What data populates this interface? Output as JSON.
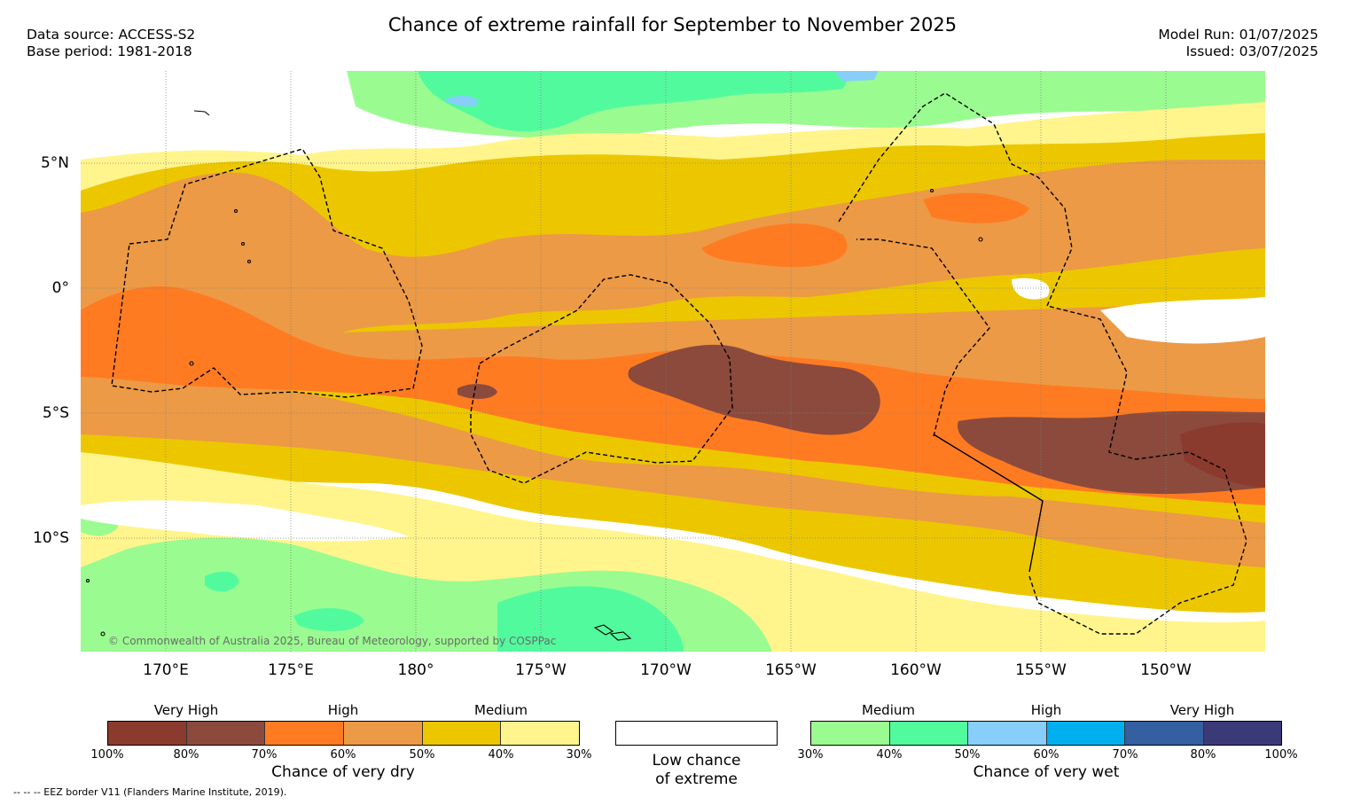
{
  "header": {
    "title": "Chance of extreme rainfall for September to November 2025",
    "data_source": "Data source: ACCESS-S2",
    "base_period": "Base period: 1981-2018",
    "model_run": "Model Run: 01/07/2025",
    "issued": "Issued: 03/07/2025"
  },
  "map": {
    "lat_labels": [
      "5°N",
      "0°",
      "5°S",
      "10°S"
    ],
    "lon_labels": [
      "170°E",
      "175°E",
      "180°",
      "175°W",
      "170°W",
      "165°W",
      "160°W",
      "155°W",
      "150°W"
    ],
    "copyright": "© Commonwealth of Australia 2025, Bureau of Meteorology, supported by COSPPac"
  },
  "legend": {
    "dry": {
      "categories": [
        "Very High",
        "High",
        "Medium"
      ],
      "ticks": [
        "100%",
        "80%",
        "70%",
        "60%",
        "50%",
        "40%",
        "30%"
      ],
      "colors": [
        "#8b3a2e",
        "#8b4a3c",
        "#ff7b22",
        "#ec9a45",
        "#ecc700",
        "#fff58c"
      ],
      "caption": "Chance of very dry"
    },
    "neutral": {
      "caption_line1": "Low chance",
      "caption_line2": "of extreme",
      "color": "#ffffff"
    },
    "wet": {
      "categories": [
        "Medium",
        "High",
        "Very High"
      ],
      "ticks": [
        "30%",
        "40%",
        "50%",
        "60%",
        "70%",
        "80%",
        "100%"
      ],
      "colors": [
        "#9afc90",
        "#52fa9e",
        "#87cefb",
        "#00b0ee",
        "#345fa0",
        "#3b3a78"
      ],
      "caption": "Chance of very wet"
    }
  },
  "footer": {
    "eez_note": "-- -- -- EEZ border V11 (Flanders Marine Institute, 2019)."
  }
}
